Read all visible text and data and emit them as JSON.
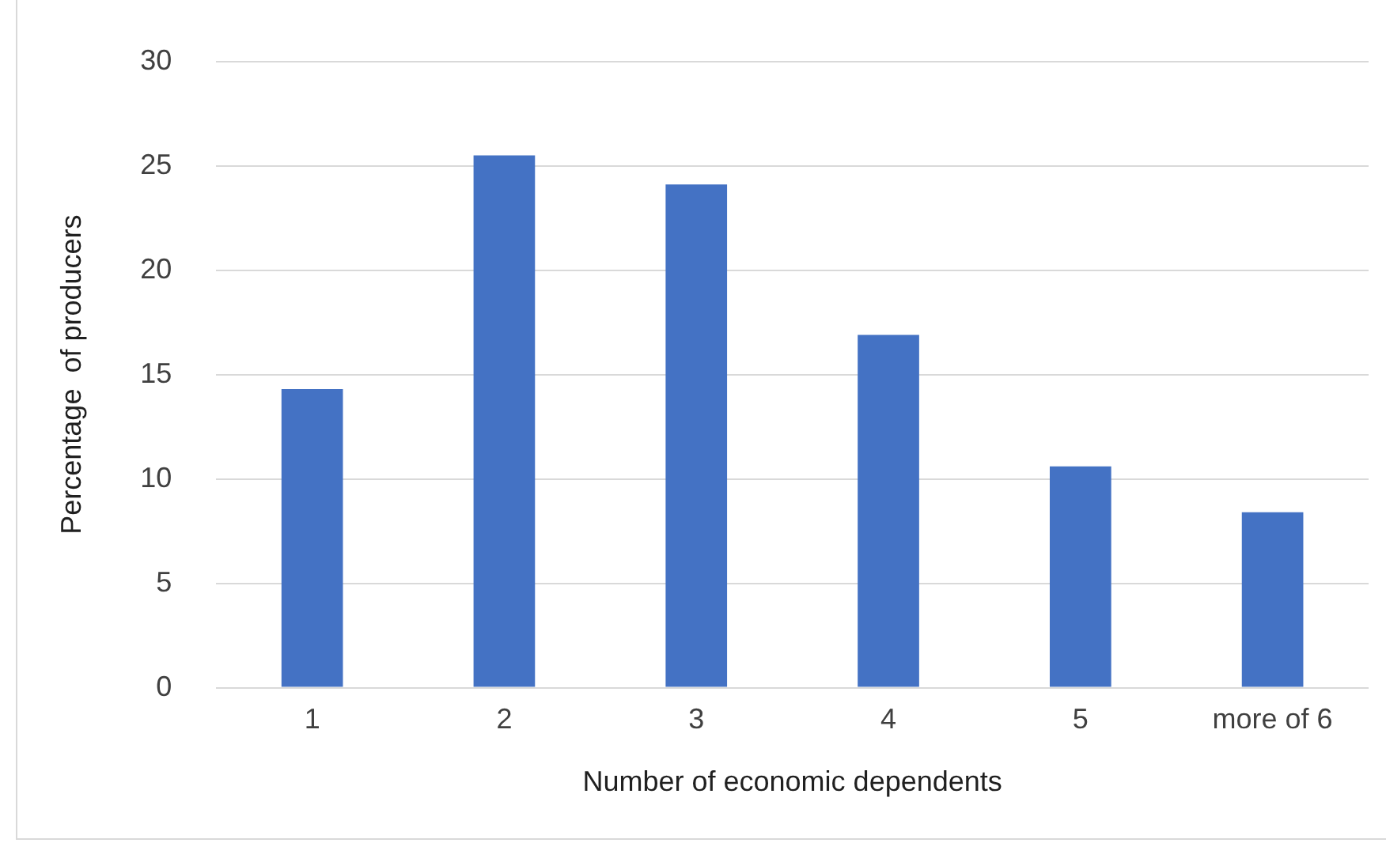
{
  "chart_data": {
    "type": "bar",
    "xlabel": "Number of economic dependents",
    "ylabel": "Percentage  of producers",
    "categories": [
      "1",
      "2",
      "3",
      "4",
      "5",
      "more of 6"
    ],
    "values": [
      14.3,
      25.5,
      24.1,
      16.9,
      10.6,
      8.4
    ],
    "color": "#4472c4",
    "ylim": [
      0,
      30
    ],
    "yticks": [
      0,
      5,
      10,
      15,
      20,
      25,
      30
    ],
    "grid": "y",
    "legend": false
  }
}
